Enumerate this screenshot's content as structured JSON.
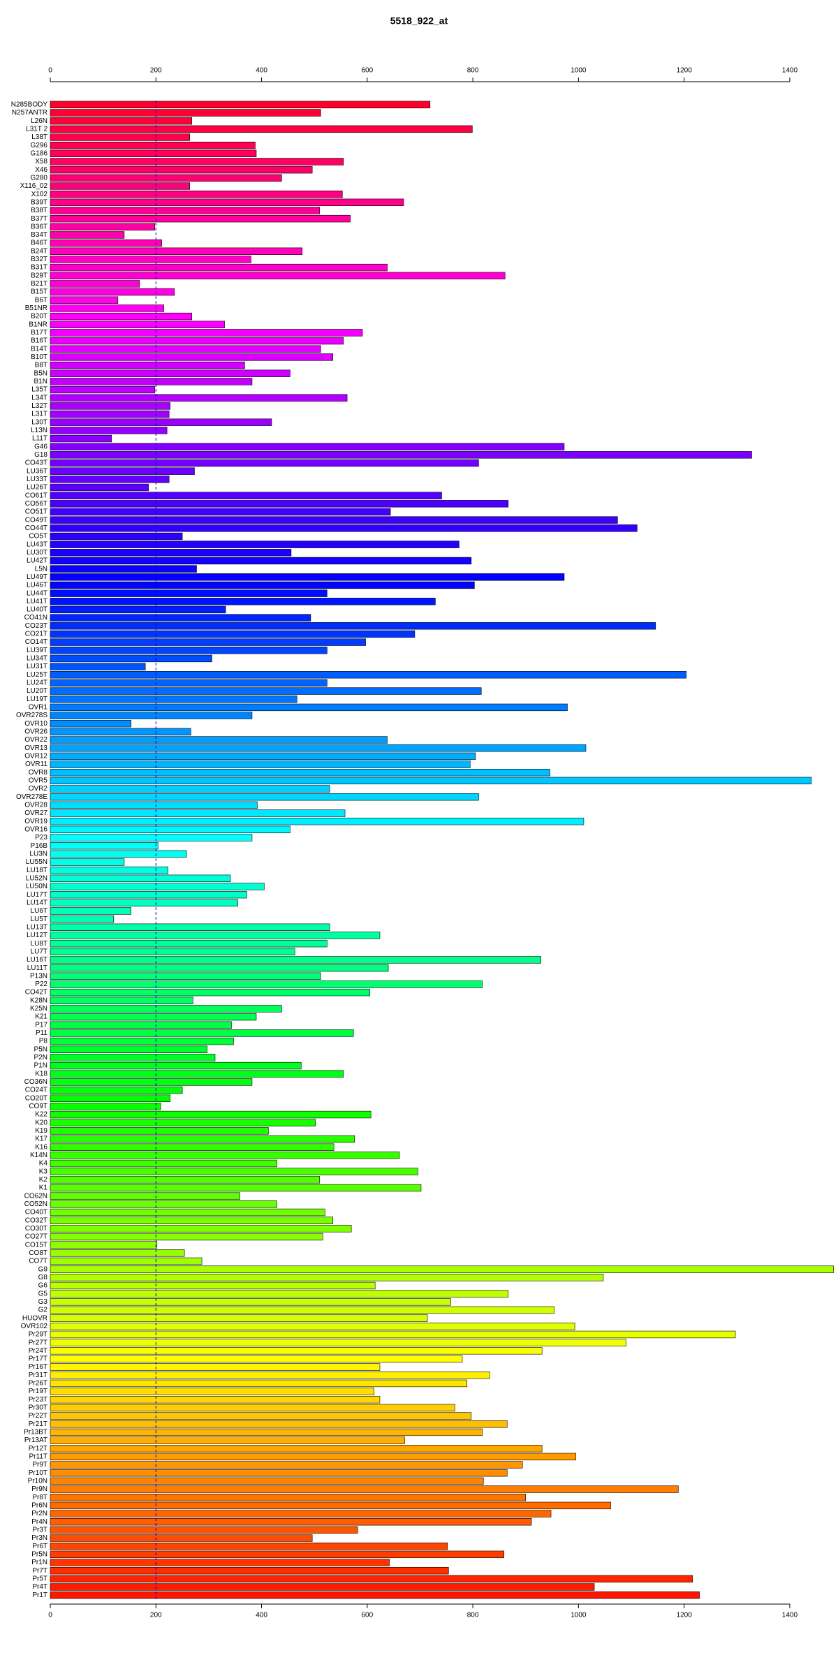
{
  "chart_data": {
    "type": "bar",
    "orientation": "horizontal",
    "title": "5518_922_at",
    "categories": [
      "N285BODY",
      "N257ANTR",
      "L26N",
      "L31T 2",
      "L38T",
      "G296",
      "G186",
      "X58",
      "X46",
      "G280",
      "X116_02",
      "X102",
      "B39T",
      "B38T",
      "B37T",
      "B36T",
      "B34T",
      "B46T",
      "B24T",
      "B32T",
      "B31T",
      "B29T",
      "B21T",
      "B15T",
      "B6T",
      "B51NR",
      "B20T",
      "B1NR",
      "B17T",
      "B16T",
      "B14T",
      "B10T",
      "B8T",
      "B5N",
      "B1N",
      "L35T",
      "L34T",
      "L32T",
      "L31T",
      "L30T",
      "L13N",
      "L11T",
      "G46",
      "G18",
      "CO43T",
      "LU36T",
      "LU33T",
      "LU26T",
      "CO61T",
      "CO56T",
      "CO51T",
      "CO49T",
      "CO44T",
      "CO5T",
      "LU43T",
      "LU30T",
      "LU42T",
      "L5N",
      "LU49T",
      "LU46T",
      "LU44T",
      "LU41T",
      "LU40T",
      "CO41N",
      "CO23T",
      "CO21T",
      "CO14T",
      "LU39T",
      "LU34T",
      "LU31T",
      "LU25T",
      "LU24T",
      "LU20T",
      "LU19T",
      "OVR1",
      "OVR278S",
      "OVR10",
      "OVR26",
      "OVR22",
      "OVR13",
      "OVR12",
      "OVR11",
      "OVR8",
      "OVR5",
      "OVR2",
      "OVR278E",
      "OVR28",
      "OVR27",
      "OVR19",
      "OVR16",
      "P23",
      "P16B",
      "LU3N",
      "LU55N",
      "LU18T",
      "LU52N",
      "LU50N",
      "LU17T",
      "LU14T",
      "LU6T",
      "LU5T",
      "LU13T",
      "LU12T",
      "LU8T",
      "LU7T",
      "LU16T",
      "LU11T",
      "P13N",
      "P22",
      "CO42T",
      "K28N",
      "K25N",
      "K21",
      "P17",
      "P11",
      "P8",
      "P5N",
      "P2N",
      "P1N",
      "K18",
      "CO36N",
      "CO24T",
      "CO20T",
      "CO9T",
      "K22",
      "K20",
      "K19",
      "K17",
      "K16",
      "K14N",
      "K4",
      "K3",
      "K2",
      "K1",
      "CO62N",
      "CO52N",
      "CO40T",
      "CO32T",
      "CO30T",
      "CO27T",
      "CO15T",
      "CO8T",
      "CO7T",
      "G9",
      "G8",
      "G6",
      "G5",
      "G3",
      "G2",
      "HUOVR",
      "OVR102",
      "Pr29T",
      "Pr27T",
      "Pr24T",
      "Pr17T",
      "Pr16T",
      "Pr31T",
      "Pr26T",
      "Pr19T",
      "Pr23T",
      "Pr30T",
      "Pr22T",
      "Pr21T",
      "Pr13BT",
      "Pr13AT",
      "Pr12T",
      "Pr11T",
      "Pr9T",
      "Pr10T",
      "Pr10N",
      "Pr9N",
      "Pr8T",
      "Pr6N",
      "Pr2N",
      "Pr4N",
      "Pr3T",
      "Pr3N",
      "Pr6T",
      "Pr5N",
      "Pr1N",
      "Pr7T",
      "Pr5T",
      "Pr4T",
      "Pr1T"
    ],
    "values": [
      719,
      512,
      268,
      799,
      264,
      388,
      390,
      555,
      496,
      438,
      264,
      553,
      669,
      510,
      568,
      198,
      140,
      211,
      477,
      380,
      638,
      861,
      169,
      235,
      128,
      215,
      268,
      330,
      591,
      555,
      512,
      535,
      368,
      454,
      382,
      198,
      562,
      227,
      225,
      419,
      221,
      116,
      973,
      1328,
      811,
      273,
      225,
      186,
      741,
      867,
      644,
      1074,
      1111,
      250,
      774,
      456,
      797,
      277,
      973,
      803,
      524,
      729,
      332,
      493,
      1146,
      690,
      597,
      524,
      306,
      180,
      1204,
      524,
      816,
      467,
      979,
      382,
      153,
      266,
      638,
      1014,
      805,
      795,
      946,
      1441,
      529,
      811,
      392,
      558,
      1010,
      454,
      382,
      204,
      258,
      140,
      223,
      341,
      405,
      372,
      355,
      153,
      120,
      529,
      624,
      524,
      463,
      929,
      640,
      512,
      818,
      605,
      270,
      438,
      390,
      343,
      574,
      347,
      297,
      312,
      475,
      555,
      382,
      250,
      227,
      209,
      607,
      502,
      413,
      576,
      537,
      661,
      429,
      696,
      510,
      702,
      359,
      429,
      520,
      535,
      570,
      516,
      202,
      254,
      287,
      1483,
      1047,
      615,
      867,
      758,
      954,
      714,
      993,
      1297,
      1090,
      931,
      780,
      624,
      832,
      789,
      613,
      624,
      766,
      797,
      865,
      818,
      671,
      931,
      995,
      894,
      865,
      820,
      1189,
      900,
      1061,
      948,
      911,
      582,
      496,
      752,
      859,
      642,
      754,
      1216,
      1030,
      1229
    ],
    "xlim": [
      0,
      1490
    ],
    "xticks": [
      0,
      200,
      400,
      600,
      800,
      1000,
      1200,
      1400
    ],
    "reference_line": 200,
    "reference_line_color": "#0000cc",
    "bar_stroke": "#000000"
  }
}
